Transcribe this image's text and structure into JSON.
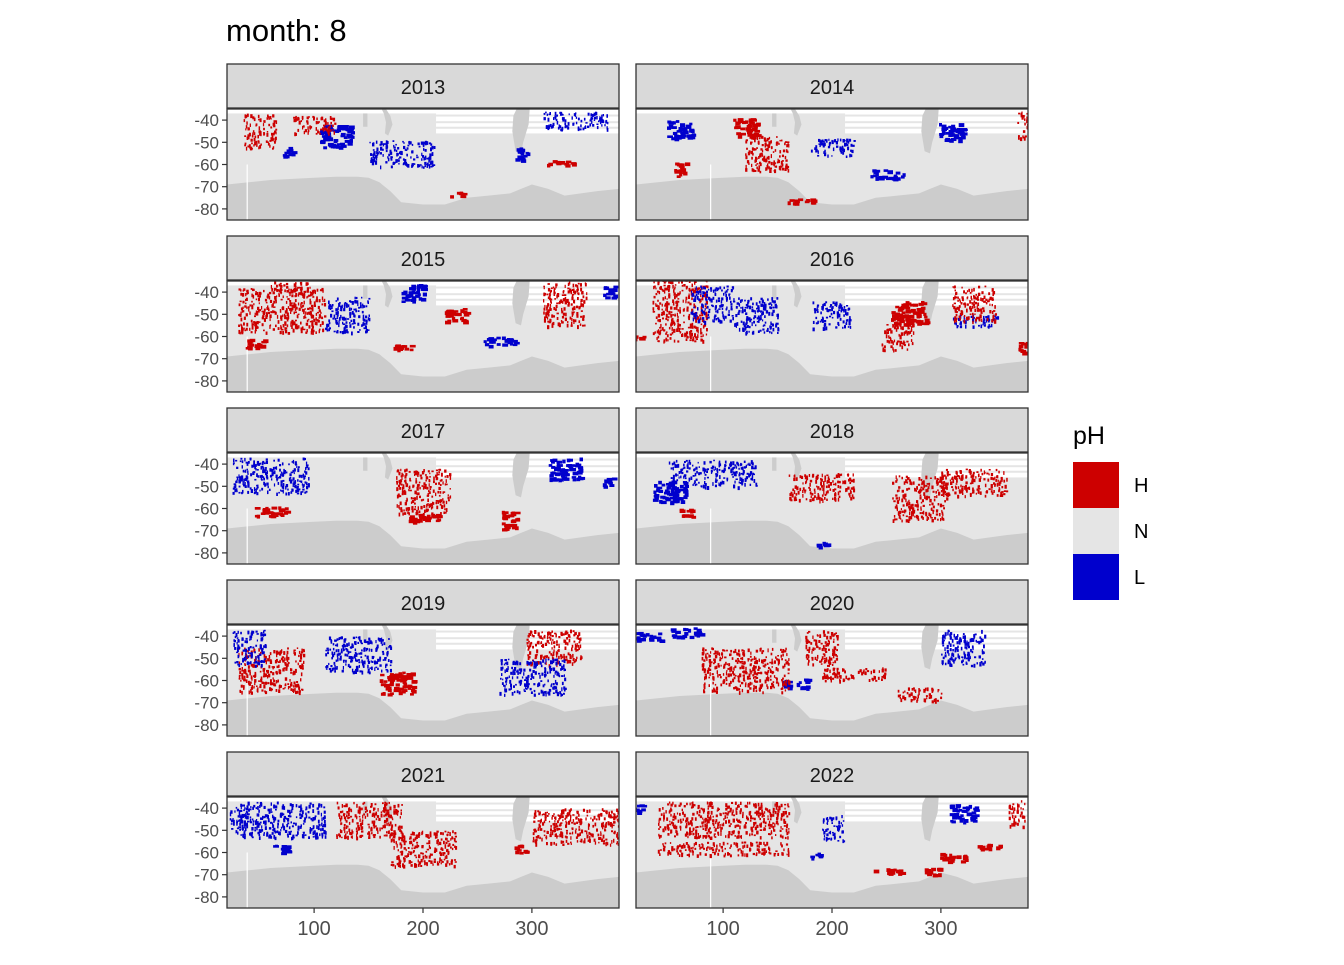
{
  "chart_data": {
    "type": "heatmap",
    "title": "month: 8",
    "facet_variable": "year",
    "panels": [
      "2013",
      "2014",
      "2015",
      "2016",
      "2017",
      "2018",
      "2019",
      "2020",
      "2021",
      "2022"
    ],
    "xlabel": "",
    "ylabel": "",
    "x_ticks": [
      100,
      200,
      300
    ],
    "y_ticks": [
      -40,
      -50,
      -60,
      -70,
      -80
    ],
    "y_tick_labels": [
      "-40",
      "-50",
      "-60",
      "-70",
      "-80"
    ],
    "xlim": [
      20,
      380
    ],
    "ylim": [
      -85,
      -35
    ],
    "legend": {
      "title": "pH",
      "position": "right",
      "entries": [
        {
          "label": "H",
          "color": "#CD0000"
        },
        {
          "label": "N",
          "color": "#E5E5E5"
        },
        {
          "label": "L",
          "color": "#0000CD"
        }
      ]
    },
    "colors": {
      "H": "#CD0000",
      "N": "#E5E5E5",
      "L": "#0000CD",
      "land": "#CCCCCC",
      "strip": "#D9D9D9",
      "ocean_background": "#E5E5E5"
    },
    "clusters": {
      "2013": [
        {
          "lon": 75,
          "lat": -54,
          "c": "L",
          "dlon": 6,
          "dlat": 2
        },
        {
          "lon": 120,
          "lat": -47,
          "c": "L",
          "dlon": 15,
          "dlat": 5
        },
        {
          "lon": 100,
          "lat": -42,
          "c": "H",
          "dlon": 20,
          "dlat": 4
        },
        {
          "lon": 180,
          "lat": -55,
          "c": "L",
          "dlon": 30,
          "dlat": 6
        },
        {
          "lon": 340,
          "lat": -40,
          "c": "L",
          "dlon": 30,
          "dlat": 4
        },
        {
          "lon": 325,
          "lat": -59,
          "c": "H",
          "dlon": 12,
          "dlat": 1
        },
        {
          "lon": 50,
          "lat": -45,
          "c": "H",
          "dlon": 15,
          "dlat": 8
        },
        {
          "lon": 230,
          "lat": -73,
          "c": "H",
          "dlon": 6,
          "dlat": 1
        },
        {
          "lon": 290,
          "lat": -55,
          "c": "L",
          "dlon": 6,
          "dlat": 3
        }
      ],
      "2014": [
        {
          "lon": 120,
          "lat": -43,
          "c": "H",
          "dlon": 12,
          "dlat": 4
        },
        {
          "lon": 60,
          "lat": -44,
          "c": "L",
          "dlon": 12,
          "dlat": 4
        },
        {
          "lon": 60,
          "lat": -62,
          "c": "H",
          "dlon": 5,
          "dlat": 3
        },
        {
          "lon": 170,
          "lat": -76,
          "c": "H",
          "dlon": 15,
          "dlat": 1
        },
        {
          "lon": 250,
          "lat": -64,
          "c": "L",
          "dlon": 15,
          "dlat": 2
        },
        {
          "lon": 310,
          "lat": -45,
          "c": "L",
          "dlon": 12,
          "dlat": 4
        },
        {
          "lon": 375,
          "lat": -42,
          "c": "H",
          "dlon": 5,
          "dlat": 6
        },
        {
          "lon": 140,
          "lat": -55,
          "c": "H",
          "dlon": 20,
          "dlat": 8
        },
        {
          "lon": 200,
          "lat": -52,
          "c": "L",
          "dlon": 20,
          "dlat": 4
        }
      ],
      "2015": [
        {
          "lon": 80,
          "lat": -38,
          "c": "H",
          "dlon": 20,
          "dlat": 3
        },
        {
          "lon": 70,
          "lat": -48,
          "c": "H",
          "dlon": 40,
          "dlat": 10
        },
        {
          "lon": 45,
          "lat": -63,
          "c": "H",
          "dlon": 10,
          "dlat": 2
        },
        {
          "lon": 130,
          "lat": -50,
          "c": "L",
          "dlon": 20,
          "dlat": 8
        },
        {
          "lon": 190,
          "lat": -40,
          "c": "L",
          "dlon": 10,
          "dlat": 4
        },
        {
          "lon": 230,
          "lat": -50,
          "c": "H",
          "dlon": 10,
          "dlat": 3
        },
        {
          "lon": 270,
          "lat": -62,
          "c": "L",
          "dlon": 15,
          "dlat": 2
        },
        {
          "lon": 330,
          "lat": -45,
          "c": "H",
          "dlon": 20,
          "dlat": 10
        },
        {
          "lon": 370,
          "lat": -40,
          "c": "L",
          "dlon": 5,
          "dlat": 3
        },
        {
          "lon": 180,
          "lat": -65,
          "c": "H",
          "dlon": 8,
          "dlat": 2
        }
      ],
      "2016": [
        {
          "lon": 270,
          "lat": -49,
          "c": "H",
          "dlon": 16,
          "dlat": 5
        },
        {
          "lon": 260,
          "lat": -60,
          "c": "H",
          "dlon": 15,
          "dlat": 6
        },
        {
          "lon": 200,
          "lat": -50,
          "c": "L",
          "dlon": 18,
          "dlat": 6
        },
        {
          "lon": 330,
          "lat": -53,
          "c": "L",
          "dlon": 22,
          "dlat": 3
        },
        {
          "lon": 20,
          "lat": -60,
          "c": "H",
          "dlon": 6,
          "dlat": 1
        },
        {
          "lon": 60,
          "lat": -47,
          "c": "H",
          "dlon": 25,
          "dlat": 15
        },
        {
          "lon": 90,
          "lat": -45,
          "c": "L",
          "dlon": 20,
          "dlat": 8
        },
        {
          "lon": 130,
          "lat": -50,
          "c": "L",
          "dlon": 20,
          "dlat": 8
        },
        {
          "lon": 330,
          "lat": -45,
          "c": "H",
          "dlon": 20,
          "dlat": 8
        },
        {
          "lon": 375,
          "lat": -65,
          "c": "H",
          "dlon": 4,
          "dlat": 3
        }
      ],
      "2017": [
        {
          "lon": 60,
          "lat": -61,
          "c": "H",
          "dlon": 15,
          "dlat": 2
        },
        {
          "lon": 200,
          "lat": -64,
          "c": "H",
          "dlon": 15,
          "dlat": 2
        },
        {
          "lon": 60,
          "lat": -45,
          "c": "L",
          "dlon": 35,
          "dlat": 8
        },
        {
          "lon": 330,
          "lat": -42,
          "c": "L",
          "dlon": 15,
          "dlat": 5
        },
        {
          "lon": 370,
          "lat": -48,
          "c": "L",
          "dlon": 5,
          "dlat": 2
        },
        {
          "lon": 280,
          "lat": -65,
          "c": "H",
          "dlon": 8,
          "dlat": 4
        },
        {
          "lon": 200,
          "lat": -52,
          "c": "H",
          "dlon": 25,
          "dlat": 10
        }
      ],
      "2018": [
        {
          "lon": 65,
          "lat": -62,
          "c": "H",
          "dlon": 6,
          "dlat": 2
        },
        {
          "lon": 90,
          "lat": -44,
          "c": "L",
          "dlon": 40,
          "dlat": 6
        },
        {
          "lon": 50,
          "lat": -52,
          "c": "L",
          "dlon": 15,
          "dlat": 5
        },
        {
          "lon": 190,
          "lat": -50,
          "c": "H",
          "dlon": 30,
          "dlat": 6
        },
        {
          "lon": 330,
          "lat": -48,
          "c": "H",
          "dlon": 30,
          "dlat": 6
        },
        {
          "lon": 190,
          "lat": -76,
          "c": "L",
          "dlon": 5,
          "dlat": 1
        },
        {
          "lon": 280,
          "lat": -55,
          "c": "H",
          "dlon": 25,
          "dlat": 10
        }
      ],
      "2019": [
        {
          "lon": 175,
          "lat": -61,
          "c": "H",
          "dlon": 15,
          "dlat": 5
        },
        {
          "lon": 140,
          "lat": -48,
          "c": "L",
          "dlon": 30,
          "dlat": 8
        },
        {
          "lon": 320,
          "lat": -45,
          "c": "H",
          "dlon": 25,
          "dlat": 8
        },
        {
          "lon": 300,
          "lat": -58,
          "c": "L",
          "dlon": 30,
          "dlat": 8
        },
        {
          "lon": 60,
          "lat": -55,
          "c": "H",
          "dlon": 30,
          "dlat": 10
        },
        {
          "lon": 40,
          "lat": -45,
          "c": "L",
          "dlon": 15,
          "dlat": 8
        }
      ],
      "2020": [
        {
          "lon": 65,
          "lat": -38,
          "c": "L",
          "dlon": 15,
          "dlat": 2
        },
        {
          "lon": 30,
          "lat": -40,
          "c": "L",
          "dlon": 12,
          "dlat": 2
        },
        {
          "lon": 165,
          "lat": -61,
          "c": "L",
          "dlon": 12,
          "dlat": 2
        },
        {
          "lon": 120,
          "lat": -55,
          "c": "H",
          "dlon": 40,
          "dlat": 10
        },
        {
          "lon": 220,
          "lat": -57,
          "c": "H",
          "dlon": 30,
          "dlat": 3
        },
        {
          "lon": 280,
          "lat": -66,
          "c": "H",
          "dlon": 20,
          "dlat": 3
        },
        {
          "lon": 320,
          "lat": -45,
          "c": "L",
          "dlon": 20,
          "dlat": 8
        },
        {
          "lon": 190,
          "lat": -45,
          "c": "H",
          "dlon": 15,
          "dlat": 8
        }
      ],
      "2021": [
        {
          "lon": 70,
          "lat": -45,
          "c": "L",
          "dlon": 40,
          "dlat": 8
        },
        {
          "lon": 340,
          "lat": -48,
          "c": "H",
          "dlon": 40,
          "dlat": 8
        },
        {
          "lon": 200,
          "lat": -58,
          "c": "H",
          "dlon": 30,
          "dlat": 8
        },
        {
          "lon": 150,
          "lat": -45,
          "c": "H",
          "dlon": 30,
          "dlat": 8
        },
        {
          "lon": 290,
          "lat": -58,
          "c": "H",
          "dlon": 6,
          "dlat": 2
        },
        {
          "lon": 70,
          "lat": -58,
          "c": "L",
          "dlon": 8,
          "dlat": 2
        },
        {
          "lon": 30,
          "lat": -45,
          "c": "L",
          "dlon": 8,
          "dlat": 6
        }
      ],
      "2022": [
        {
          "lon": 290,
          "lat": -68,
          "c": "H",
          "dlon": 8,
          "dlat": 2
        },
        {
          "lon": 310,
          "lat": -62,
          "c": "H",
          "dlon": 12,
          "dlat": 2
        },
        {
          "lon": 340,
          "lat": -57,
          "c": "H",
          "dlon": 15,
          "dlat": 1
        },
        {
          "lon": 190,
          "lat": -61,
          "c": "L",
          "dlon": 10,
          "dlat": 1
        },
        {
          "lon": 200,
          "lat": -49,
          "c": "L",
          "dlon": 10,
          "dlat": 6
        },
        {
          "lon": 100,
          "lat": -45,
          "c": "H",
          "dlon": 60,
          "dlat": 8
        },
        {
          "lon": 100,
          "lat": -58,
          "c": "H",
          "dlon": 60,
          "dlat": 3
        },
        {
          "lon": 320,
          "lat": -42,
          "c": "L",
          "dlon": 12,
          "dlat": 4
        },
        {
          "lon": 370,
          "lat": -42,
          "c": "H",
          "dlon": 8,
          "dlat": 6
        },
        {
          "lon": 20,
          "lat": -40,
          "c": "L",
          "dlon": 5,
          "dlat": 2
        },
        {
          "lon": 250,
          "lat": -68,
          "c": "H",
          "dlon": 15,
          "dlat": 1
        }
      ]
    }
  }
}
